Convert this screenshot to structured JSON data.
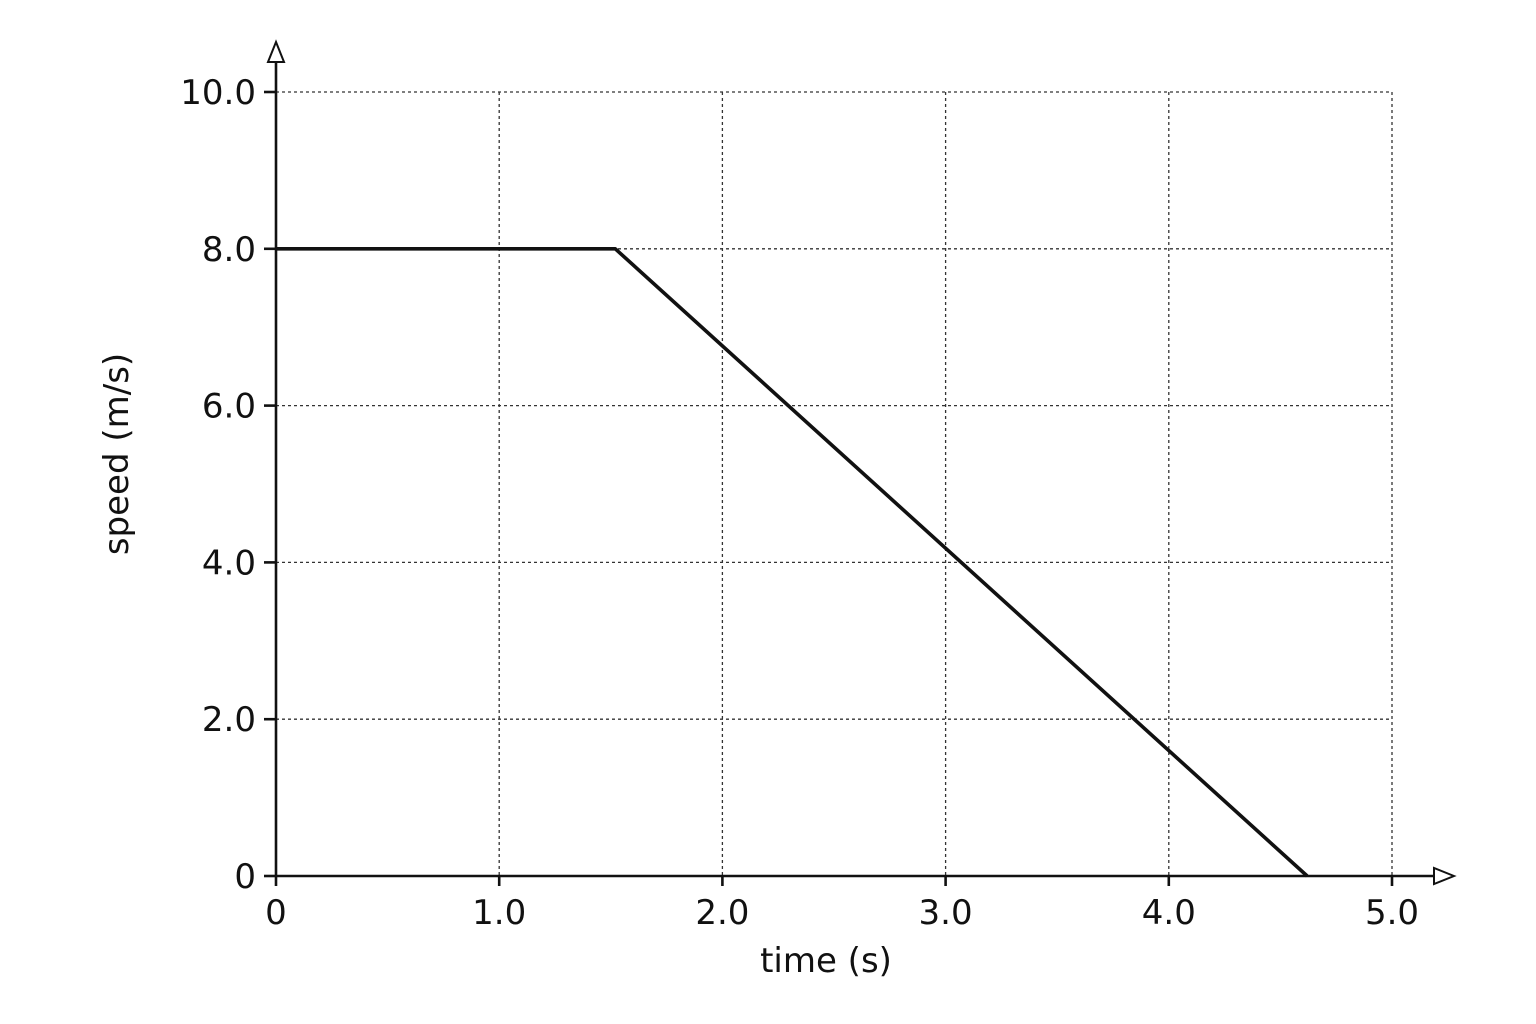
{
  "chart_data": {
    "type": "line",
    "xlabel": "time (s)",
    "ylabel": "speed (m/s)",
    "xlim": [
      0,
      5.0
    ],
    "ylim": [
      0,
      10.0
    ],
    "x_ticks": [
      0,
      1.0,
      2.0,
      3.0,
      4.0,
      5.0
    ],
    "x_tick_labels": [
      "0",
      "1.0",
      "2.0",
      "3.0",
      "4.0",
      "5.0"
    ],
    "y_ticks": [
      0,
      2.0,
      4.0,
      6.0,
      8.0,
      10.0
    ],
    "y_tick_labels": [
      "0",
      "2.0",
      "4.0",
      "6.0",
      "8.0",
      "10.0"
    ],
    "grid": true,
    "series": [
      {
        "x": [
          0,
          1.52,
          4.62
        ],
        "y": [
          8.0,
          8.0,
          0
        ],
        "color": "#111111"
      }
    ]
  }
}
